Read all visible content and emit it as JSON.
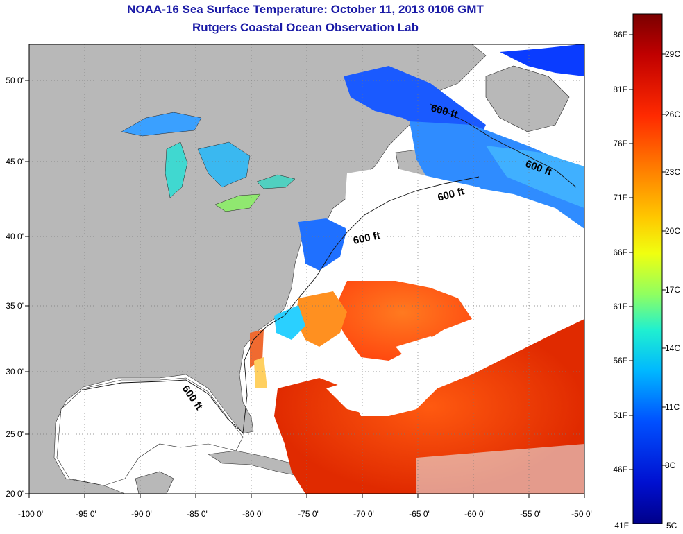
{
  "title": "NOAA-16 Sea Surface Temperature:  October 11, 2013 0106 GMT",
  "subtitle": "Rutgers Coastal Ocean Observation Lab",
  "map": {
    "lon_range": [
      -100,
      -50
    ],
    "lat_range": [
      20,
      52
    ],
    "lon_ticks": [
      "-100 0'",
      "-95 0'",
      "-90 0'",
      "-85 0'",
      "-80 0'",
      "-75 0'",
      "-70 0'",
      "-65 0'",
      "-60 0'",
      "-55 0'",
      "-50 0'"
    ],
    "lat_ticks": [
      "20 0'",
      "25 0'",
      "30 0'",
      "35 0'",
      "40 0'",
      "45 0'",
      "50 0'"
    ],
    "contour_label": "600 ft",
    "contour_labels": [
      "600 ft",
      "600 ft",
      "600 ft",
      "600 ft",
      "600 ft"
    ],
    "land_color": "#b8b8b8",
    "cloud_color": "#ffffff"
  },
  "colorbar": {
    "fahrenheit_labels": [
      "86F",
      "81F",
      "76F",
      "71F",
      "66F",
      "61F",
      "56F",
      "51F",
      "46F",
      "41F"
    ],
    "celsius_labels": [
      "29C",
      "26C",
      "23C",
      "20C",
      "17C",
      "14C",
      "11C",
      "8C",
      "5C"
    ],
    "colors_top_to_bottom": [
      "#7a0000",
      "#d40000",
      "#ff3a00",
      "#ff8c00",
      "#ffd400",
      "#d8ff20",
      "#70ff80",
      "#10e8e0",
      "#0090ff",
      "#0030ff",
      "#00009a"
    ]
  }
}
